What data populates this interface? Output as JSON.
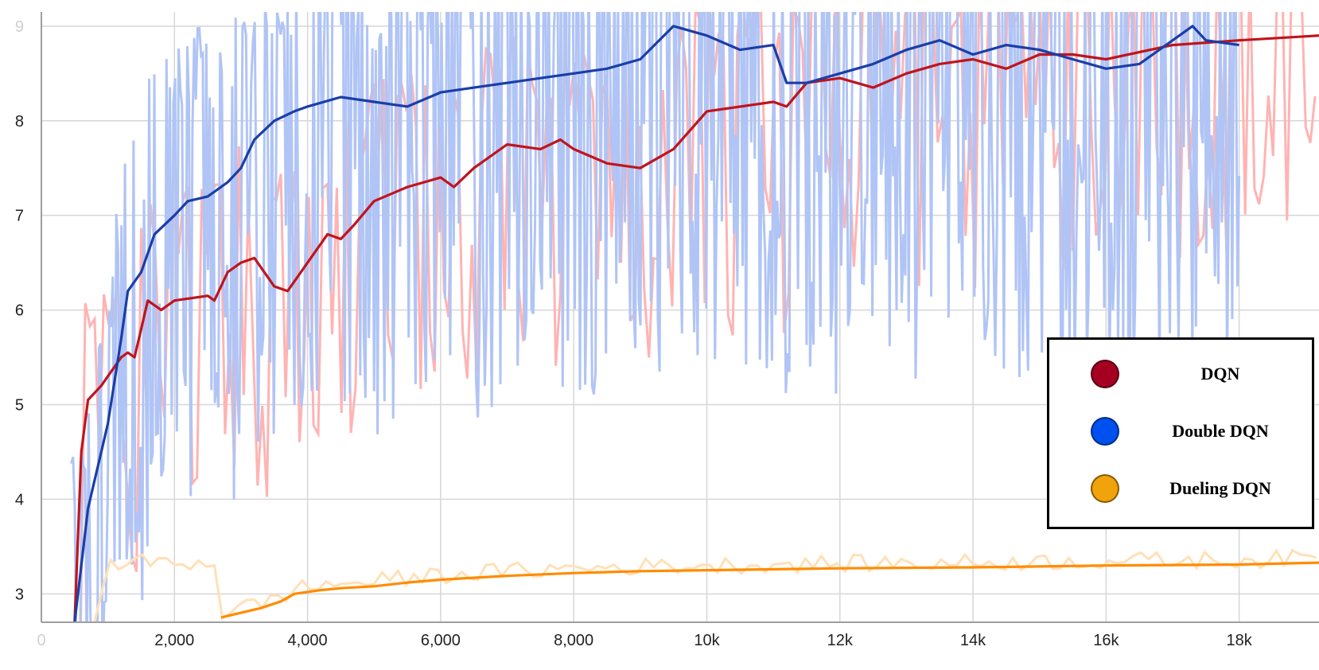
{
  "chart_data": {
    "type": "line",
    "title": "",
    "xlabel": "",
    "ylabel": "",
    "xlim": [
      0,
      19200
    ],
    "ylim": [
      2.7,
      9.15
    ],
    "grid": true,
    "x_ticks": [
      {
        "value": 0,
        "label": "0"
      },
      {
        "value": 2000,
        "label": "2,000"
      },
      {
        "value": 4000,
        "label": "4,000"
      },
      {
        "value": 6000,
        "label": "6,000"
      },
      {
        "value": 8000,
        "label": "8,000"
      },
      {
        "value": 10000,
        "label": "10k"
      },
      {
        "value": 12000,
        "label": "12k"
      },
      {
        "value": 14000,
        "label": "14k"
      },
      {
        "value": 16000,
        "label": "16k"
      },
      {
        "value": 18000,
        "label": "18k"
      }
    ],
    "y_ticks": [
      {
        "value": 3,
        "label": "3"
      },
      {
        "value": 4,
        "label": "4"
      },
      {
        "value": 5,
        "label": "5"
      },
      {
        "value": 6,
        "label": "6"
      },
      {
        "value": 7,
        "label": "7"
      },
      {
        "value": 8,
        "label": "8"
      },
      {
        "value": 9,
        "label": "9"
      }
    ],
    "legend_position": "right",
    "series": [
      {
        "name": "DQN",
        "color": "#c0141c",
        "raw_color": "#ffb3b3",
        "legend_color": "#a50021",
        "x": [
          500,
          600,
          700,
          900,
          1000,
          1200,
          1300,
          1400,
          1500,
          1600,
          1800,
          2000,
          2500,
          2600,
          2800,
          3000,
          3200,
          3500,
          3700,
          4000,
          4300,
          4500,
          4700,
          5000,
          5500,
          6000,
          6200,
          6500,
          7000,
          7500,
          7800,
          8000,
          8500,
          9000,
          9500,
          10000,
          11000,
          11200,
          11500,
          12000,
          12500,
          13000,
          13500,
          14000,
          14500,
          15000,
          15500,
          16000,
          17000,
          18000,
          19200
        ],
        "y": [
          2.7,
          4.5,
          5.05,
          5.2,
          5.3,
          5.5,
          5.55,
          5.5,
          5.8,
          6.1,
          6.0,
          6.1,
          6.15,
          6.1,
          6.4,
          6.5,
          6.55,
          6.25,
          6.2,
          6.5,
          6.8,
          6.75,
          6.9,
          7.15,
          7.3,
          7.4,
          7.3,
          7.5,
          7.75,
          7.7,
          7.8,
          7.7,
          7.55,
          7.5,
          7.7,
          8.1,
          8.2,
          8.15,
          8.4,
          8.45,
          8.35,
          8.5,
          8.6,
          8.65,
          8.55,
          8.7,
          8.7,
          8.65,
          8.8,
          8.85,
          8.9
        ]
      },
      {
        "name": "Double DQN",
        "color": "#1a3ea8",
        "raw_color": "#b0c4f5",
        "legend_color": "#0050ef",
        "x": [
          500,
          600,
          700,
          800,
          900,
          1000,
          1200,
          1300,
          1500,
          1700,
          2000,
          2200,
          2500,
          2800,
          3000,
          3200,
          3500,
          3800,
          4000,
          4500,
          5000,
          5500,
          6000,
          6500,
          7000,
          7500,
          8000,
          8500,
          9000,
          9500,
          10000,
          10500,
          11000,
          11200,
          11500,
          12000,
          12500,
          13000,
          13500,
          14000,
          14500,
          15000,
          15500,
          16000,
          16500,
          17000,
          17300,
          17500,
          18000
        ],
        "y": [
          2.7,
          3.3,
          3.9,
          4.2,
          4.5,
          4.8,
          5.7,
          6.2,
          6.4,
          6.8,
          7.0,
          7.15,
          7.2,
          7.35,
          7.5,
          7.8,
          8.0,
          8.1,
          8.15,
          8.25,
          8.2,
          8.15,
          8.3,
          8.35,
          8.4,
          8.45,
          8.5,
          8.55,
          8.65,
          9.0,
          8.9,
          8.75,
          8.8,
          8.4,
          8.4,
          8.5,
          8.6,
          8.75,
          8.85,
          8.7,
          8.8,
          8.75,
          8.65,
          8.55,
          8.6,
          8.85,
          9.0,
          8.85,
          8.8
        ]
      },
      {
        "name": "Dueling DQN",
        "color": "#ff8c00",
        "raw_color": "#ffe0b8",
        "legend_color": "#f0a30a",
        "x": [
          2700,
          3000,
          3300,
          3600,
          3800,
          4200,
          4500,
          5000,
          5500,
          6000,
          7000,
          8000,
          9000,
          10000,
          12000,
          14000,
          16000,
          18000,
          19200
        ],
        "y": [
          2.75,
          2.8,
          2.85,
          2.92,
          3.0,
          3.04,
          3.06,
          3.08,
          3.12,
          3.15,
          3.19,
          3.22,
          3.24,
          3.25,
          3.27,
          3.28,
          3.3,
          3.31,
          3.33
        ]
      }
    ]
  }
}
